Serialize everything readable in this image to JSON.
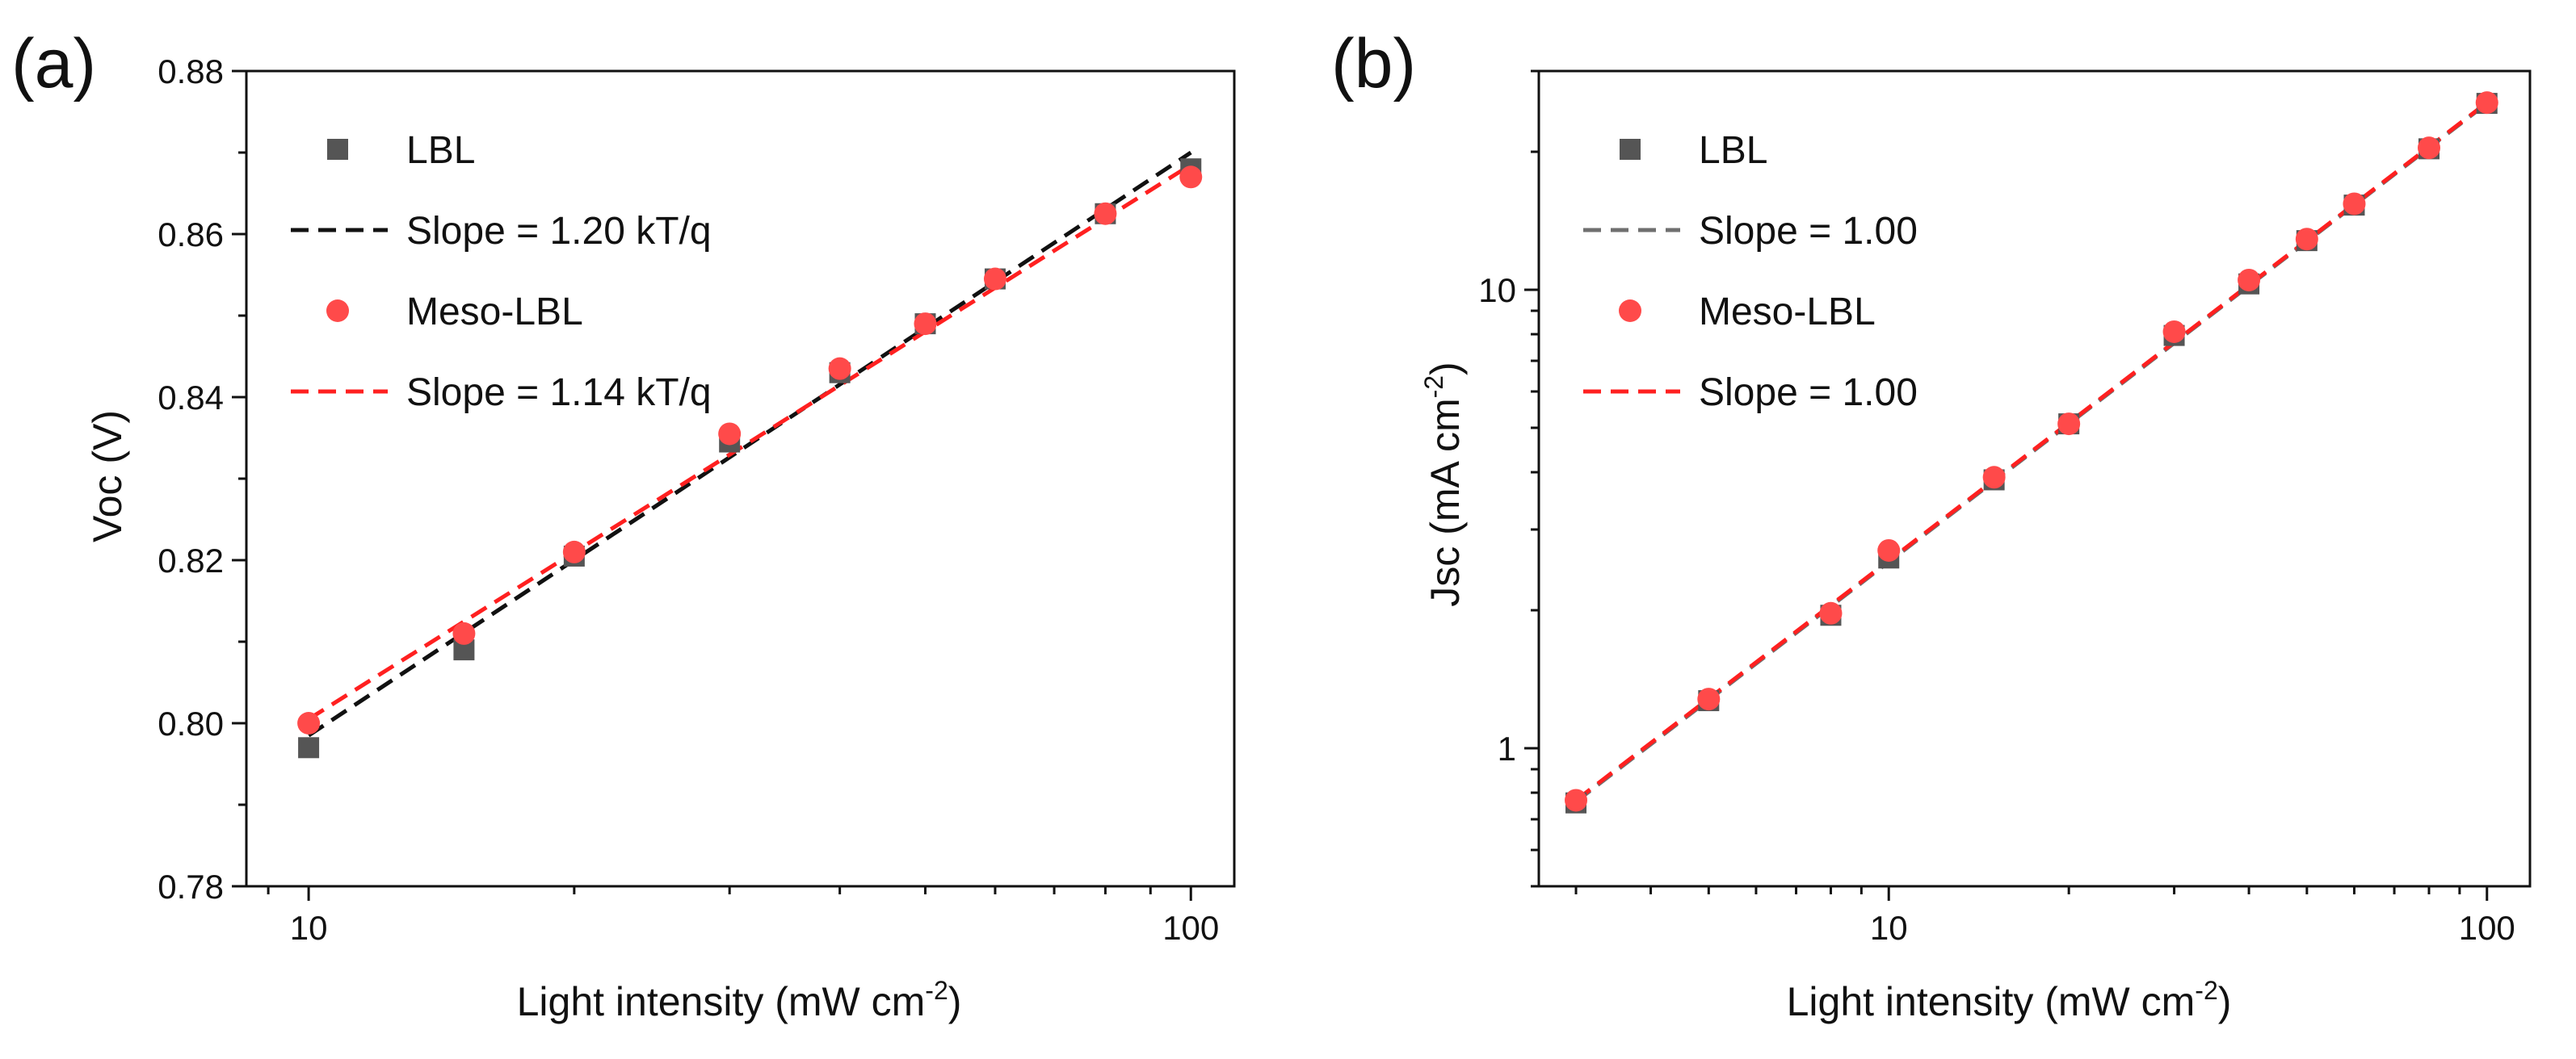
{
  "figure": {
    "background": "#ffffff"
  },
  "chart_data": [
    {
      "panel": "(a)",
      "type": "scatter",
      "xlabel": "Light intensity (mW cm",
      "xlabel_sup": "-2",
      "xlabel_end": ")",
      "ylabel": "Voc (V)",
      "xscale": "log",
      "yscale": "linear",
      "xlim": [
        8.5,
        112
      ],
      "ylim": [
        0.78,
        0.88
      ],
      "xticks": [
        10,
        100
      ],
      "xtick_labels": [
        "10",
        "100"
      ],
      "yticks": [
        0.78,
        0.8,
        0.82,
        0.84,
        0.86,
        0.88
      ],
      "ytick_labels": [
        "0.78",
        "0.80",
        "0.82",
        "0.84",
        "0.86",
        "0.88"
      ],
      "grid": false,
      "legend_position": "top-left",
      "series": [
        {
          "name": "LBL",
          "kind": "points",
          "marker": "square",
          "color": "#555555",
          "x": [
            10,
            15,
            20,
            30,
            40,
            50,
            60,
            80,
            100
          ],
          "y": [
            0.797,
            0.809,
            0.8205,
            0.8345,
            0.843,
            0.849,
            0.8545,
            0.8625,
            0.868
          ]
        },
        {
          "name": "Slope = 1.20 kT/q",
          "kind": "line",
          "dash": "dashed",
          "color": "#111111",
          "x": [
            10,
            100
          ],
          "y": [
            0.7985,
            0.87
          ]
        },
        {
          "name": "Meso-LBL",
          "kind": "points",
          "marker": "circle",
          "color": "#ff4a4a",
          "x": [
            10,
            15,
            20,
            30,
            40,
            50,
            60,
            80,
            100
          ],
          "y": [
            0.8,
            0.811,
            0.821,
            0.8355,
            0.8435,
            0.849,
            0.8545,
            0.8625,
            0.867
          ]
        },
        {
          "name": "Slope = 1.14 kT/q",
          "kind": "line",
          "dash": "dashed",
          "color": "#ff2020",
          "x": [
            10,
            100
          ],
          "y": [
            0.8005,
            0.8685
          ]
        }
      ]
    },
    {
      "panel": "(b)",
      "type": "scatter",
      "xlabel": "Light intensity (mW cm",
      "xlabel_sup": "-2",
      "xlabel_end": ")",
      "ylabel": "Jsc (mA cm",
      "ylabel_sup": "-2",
      "ylabel_end": ")",
      "xscale": "log",
      "yscale": "log",
      "xlim": [
        2.6,
        118
      ],
      "ylim": [
        0.5,
        30
      ],
      "xticks": [
        10,
        100
      ],
      "xtick_labels": [
        "10",
        "100"
      ],
      "yticks": [
        1,
        10
      ],
      "ytick_labels": [
        "1",
        "10"
      ],
      "grid": false,
      "legend_position": "top-left",
      "series": [
        {
          "name": "LBL",
          "kind": "points",
          "marker": "square",
          "color": "#555555",
          "x": [
            3,
            5,
            8,
            10,
            15,
            20,
            30,
            40,
            50,
            60,
            80,
            100
          ],
          "y": [
            0.76,
            1.27,
            1.95,
            2.6,
            3.85,
            5.1,
            7.95,
            10.3,
            12.8,
            15.3,
            20.3,
            25.5
          ]
        },
        {
          "name": "Slope = 1.00",
          "kind": "line",
          "dash": "dashed",
          "color": "#6f6f6f",
          "x": [
            3,
            100
          ],
          "y": [
            0.765,
            25.5
          ]
        },
        {
          "name": "Meso-LBL",
          "kind": "points",
          "marker": "circle",
          "color": "#ff4a4a",
          "x": [
            3,
            5,
            8,
            10,
            15,
            20,
            30,
            40,
            50,
            60,
            80,
            100
          ],
          "y": [
            0.77,
            1.28,
            1.97,
            2.7,
            3.9,
            5.1,
            8.1,
            10.5,
            12.9,
            15.4,
            20.4,
            25.6
          ]
        },
        {
          "name": "Slope = 1.00",
          "kind": "line",
          "dash": "dashed",
          "color": "#ff2020",
          "x": [
            3,
            100
          ],
          "y": [
            0.77,
            25.6
          ]
        }
      ]
    }
  ]
}
